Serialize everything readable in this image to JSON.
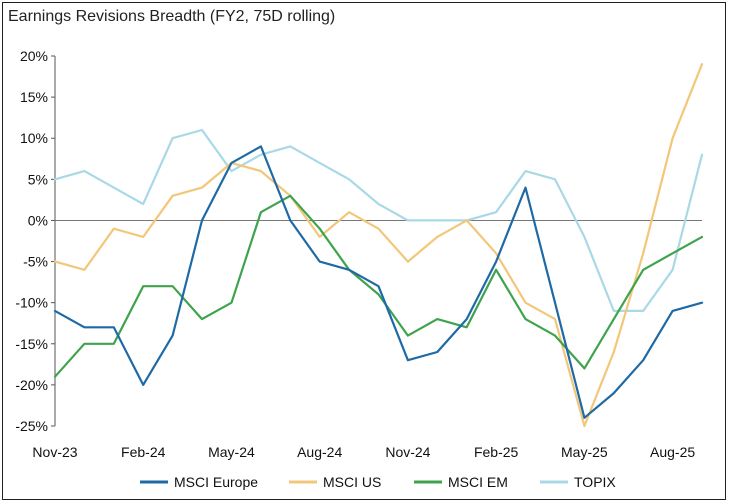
{
  "chart_data": {
    "type": "line",
    "title": "Earnings Revisions Breadth (FY2, 75D rolling)",
    "xlabel": "",
    "ylabel": "",
    "ylim": [
      -25,
      20
    ],
    "y_ticks": [
      "20%",
      "15%",
      "10%",
      "5%",
      "0%",
      "-5%",
      "-10%",
      "-15%",
      "-20%",
      "-25%"
    ],
    "x_tick_labels": [
      "Nov-23",
      "Feb-24",
      "May-24",
      "Aug-24",
      "Nov-24",
      "Feb-25",
      "May-25",
      "Aug-25"
    ],
    "x": [
      "Nov-23",
      "Dec-23",
      "Jan-24",
      "Feb-24",
      "Mar-24",
      "Apr-24",
      "May-24",
      "Jun-24",
      "Jul-24",
      "Aug-24",
      "Sep-24",
      "Oct-24",
      "Nov-24",
      "Dec-24",
      "Jan-25",
      "Feb-25",
      "Mar-25",
      "Apr-25",
      "May-25",
      "Jun-25",
      "Jul-25",
      "Aug-25",
      "Sep-25"
    ],
    "legend_position": "bottom",
    "grid": false,
    "series": [
      {
        "name": "MSCI Europe",
        "color": "#1f6aa5",
        "values": [
          -11,
          -13,
          -13,
          -20,
          -14,
          0,
          7,
          9,
          0,
          -5,
          -6,
          -8,
          -17,
          -16,
          -12,
          -5,
          4,
          -10,
          -24,
          -21,
          -17,
          -11,
          -10
        ]
      },
      {
        "name": "MSCI US",
        "color": "#f2c77a",
        "values": [
          -5,
          -6,
          -1,
          -2,
          3,
          4,
          7,
          6,
          3,
          -2,
          1,
          -1,
          -5,
          -2,
          0,
          -4,
          -10,
          -12,
          -25,
          -16,
          -4,
          10,
          19
        ]
      },
      {
        "name": "MSCI EM",
        "color": "#3fa34d",
        "values": [
          -19,
          -15,
          -15,
          -8,
          -8,
          -12,
          -10,
          1,
          3,
          -1,
          -6,
          -9,
          -14,
          -12,
          -13,
          -6,
          -12,
          -14,
          -18,
          -12,
          -6,
          -4,
          -2
        ]
      },
      {
        "name": "TOPIX",
        "color": "#a9d8e6",
        "values": [
          5,
          6,
          4,
          2,
          10,
          11,
          6,
          8,
          9,
          7,
          5,
          2,
          0,
          0,
          0,
          1,
          6,
          5,
          -2,
          -11,
          -11,
          -6,
          8
        ]
      }
    ]
  }
}
